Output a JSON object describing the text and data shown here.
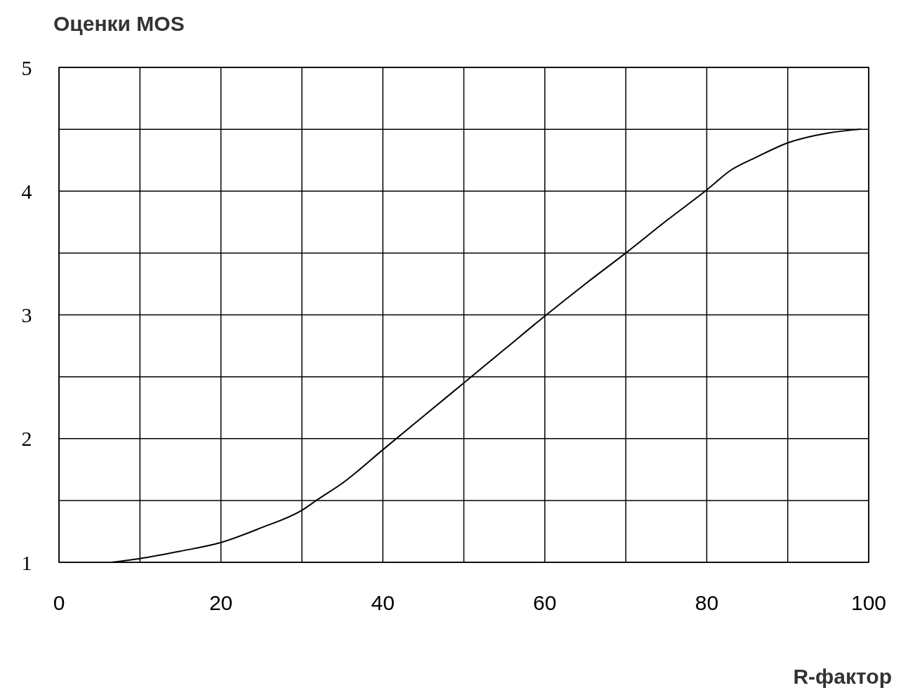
{
  "chart_data": {
    "type": "line",
    "ylabel": "Оценки MOS",
    "xlabel": "R-фактор",
    "x": [
      6.5,
      10,
      15,
      20,
      25,
      30,
      32,
      35,
      40,
      45,
      50,
      55,
      60,
      65,
      70,
      75,
      80,
      83,
      86,
      90,
      95,
      99
    ],
    "series": [
      {
        "color": "#000000",
        "values": [
          1.0,
          1.03,
          1.09,
          1.16,
          1.28,
          1.42,
          1.51,
          1.64,
          1.91,
          2.18,
          2.45,
          2.72,
          2.99,
          3.25,
          3.5,
          3.76,
          4.01,
          4.17,
          4.27,
          4.39,
          4.47,
          4.5
        ]
      }
    ],
    "xlim": [
      0,
      100
    ],
    "ylim": [
      1,
      5
    ],
    "xticks": [
      0,
      {
        "value": 10,
        "label": null
      },
      20,
      {
        "value": 30,
        "label": null
      },
      40,
      {
        "value": 50,
        "label": null
      },
      60,
      {
        "value": 70,
        "label": null
      },
      80,
      {
        "value": 90,
        "label": null
      },
      100
    ],
    "yticks": [
      1,
      {
        "value": 1.5,
        "label": null
      },
      2,
      {
        "value": 2.5,
        "label": null
      },
      3,
      {
        "value": 3.5,
        "label": null
      },
      4,
      {
        "value": 4.5,
        "label": null
      },
      5
    ],
    "grid": true,
    "marker": "none",
    "line_style": "solid"
  }
}
